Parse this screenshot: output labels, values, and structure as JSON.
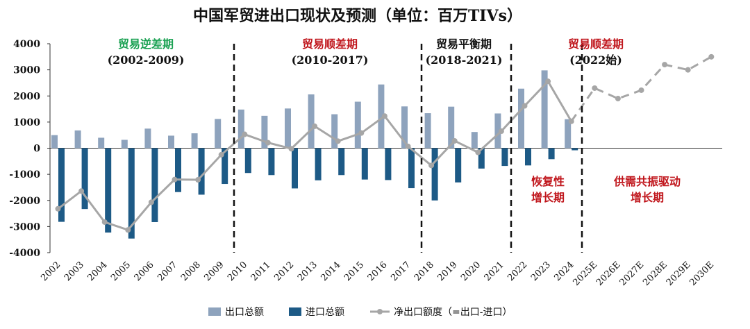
{
  "title": "中国军贸进出口现状及预测（单位：百万TIVs）",
  "chart_data": {
    "type": "bar",
    "title": "中国军贸进出口现状及预测（单位：百万TIVs）",
    "ylim": [
      -4000,
      4000
    ],
    "yticks": [
      4000,
      3000,
      2000,
      1000,
      0,
      -1000,
      -2000,
      -3000,
      -4000
    ],
    "categories": [
      "2002",
      "2003",
      "2004",
      "2005",
      "2006",
      "2007",
      "2008",
      "2009",
      "2010",
      "2011",
      "2012",
      "2013",
      "2014",
      "2015",
      "2016",
      "2017",
      "2018",
      "2019",
      "2020",
      "2021",
      "2022",
      "2023",
      "2024",
      "2025E",
      "2026E",
      "2027E",
      "2028E",
      "2029E",
      "2030E"
    ],
    "series": [
      {
        "name": "出口总额",
        "kind": "bar",
        "color": "#8ea3bd",
        "values": [
          500,
          680,
          400,
          320,
          750,
          480,
          570,
          1120,
          1480,
          1240,
          1520,
          2060,
          1300,
          1780,
          2440,
          1600,
          1340,
          1590,
          620,
          1330,
          2280,
          2980,
          1110,
          null,
          null,
          null,
          null,
          null,
          null
        ]
      },
      {
        "name": "进口总额",
        "kind": "bar",
        "color": "#1d5a86",
        "values": [
          -2820,
          -2330,
          -3230,
          -3460,
          -2830,
          -1680,
          -1780,
          -1370,
          -950,
          -1030,
          -1540,
          -1230,
          -1030,
          -1200,
          -1220,
          -1530,
          -2000,
          -1310,
          -780,
          -680,
          -660,
          -420,
          -80,
          null,
          null,
          null,
          null,
          null,
          null
        ]
      },
      {
        "name": "净出口额度（=出口-进口）",
        "kind": "line",
        "color": "#a6a6a6",
        "values": [
          -2320,
          -1640,
          -2830,
          -3130,
          -2070,
          -1200,
          -1210,
          -250,
          530,
          210,
          -20,
          840,
          270,
          580,
          1230,
          70,
          -660,
          280,
          -160,
          650,
          1620,
          2560,
          1030,
          2300,
          1900,
          2220,
          3200,
          3000,
          3500
        ]
      }
    ],
    "forecast_start_index": 22,
    "periods": [
      {
        "name": "贸易逆差期",
        "range": "(2002-2009)",
        "color": "#1aa152"
      },
      {
        "name": "贸易顺差期",
        "range": "(2010-2017)",
        "color": "#c0161c"
      },
      {
        "name": "贸易平衡期",
        "range": "(2018-2021)",
        "color": "#111111"
      },
      {
        "name": "贸易顺差期",
        "range": "(2022始)",
        "color": "#c0161c"
      }
    ],
    "phase_labels": [
      {
        "lines": [
          "恢复性",
          "增长期"
        ]
      },
      {
        "lines": [
          "供需共振驱动",
          "增长期"
        ]
      }
    ],
    "legend": [
      "出口总额",
      "进口总额",
      "净出口额度（=出口-进口）"
    ]
  }
}
